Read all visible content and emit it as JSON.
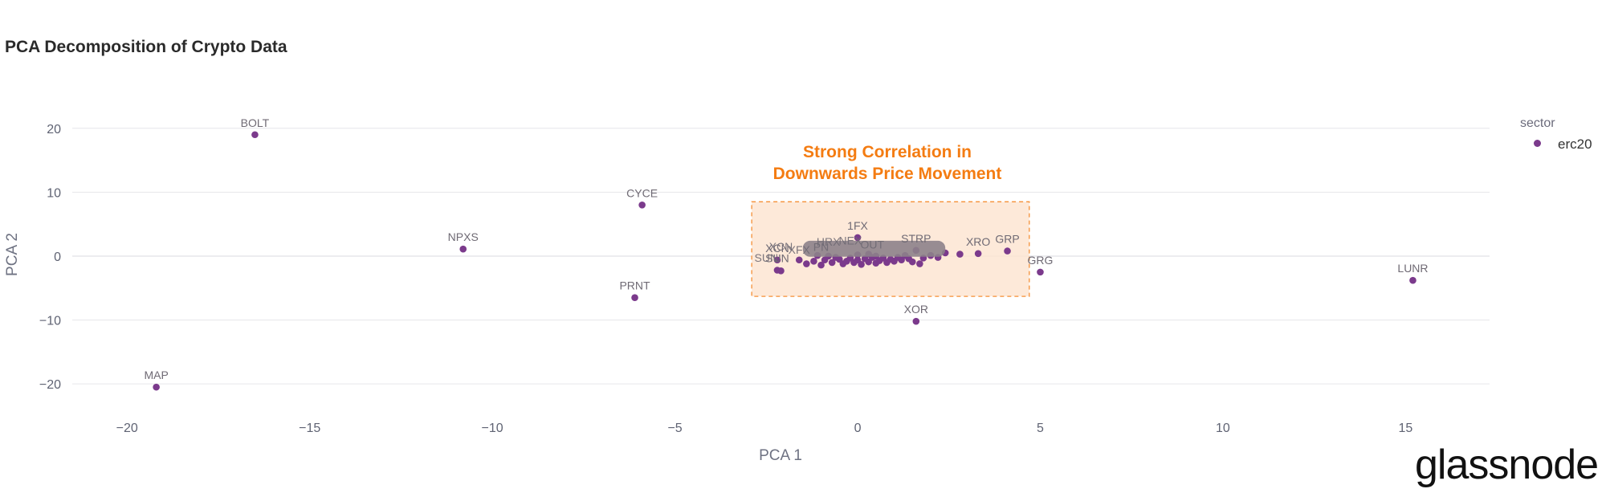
{
  "chart_data": {
    "type": "scatter",
    "title": "PCA Decomposition of Crypto Data",
    "xlabel": "PCA 1",
    "ylabel": "PCA 2",
    "xlim": [
      -21.5,
      17.3
    ],
    "ylim": [
      -24,
      25
    ],
    "xticks": [
      -20,
      -15,
      -10,
      -5,
      0,
      5,
      10,
      15
    ],
    "yticks": [
      20,
      10,
      0,
      -10,
      -20
    ],
    "grid": "horizontal",
    "legend": {
      "title": "sector",
      "position": "top-right",
      "entries": [
        "erc20"
      ]
    },
    "series": [
      {
        "name": "erc20",
        "color": "#7b3a8c",
        "labeled_points": [
          {
            "label": "BOLT",
            "x": -16.5,
            "y": 19
          },
          {
            "label": "CYCE",
            "x": -5.9,
            "y": 8
          },
          {
            "label": "NPXS",
            "x": -10.8,
            "y": 1.1
          },
          {
            "label": "PRNT",
            "x": -6.1,
            "y": -6.5
          },
          {
            "label": "MAP",
            "x": -19.2,
            "y": -20.5
          },
          {
            "label": "XOR",
            "x": 1.6,
            "y": -10.2
          },
          {
            "label": "GRG",
            "x": 5.0,
            "y": -2.5
          },
          {
            "label": "LUNR",
            "x": 15.2,
            "y": -3.8
          },
          {
            "label": "GRP",
            "x": 4.1,
            "y": 0.8
          },
          {
            "label": "XRO",
            "x": 3.3,
            "y": 0.4
          },
          {
            "label": "STRP",
            "x": 1.6,
            "y": 0.9
          },
          {
            "label": "1FX",
            "x": 0.0,
            "y": 2.9
          },
          {
            "label": "XCN",
            "x": -2.2,
            "y": -0.6
          },
          {
            "label": "SUN",
            "x": -2.2,
            "y": -2.2
          }
        ],
        "cluster_points": [
          [
            -2.1,
            -2.3
          ],
          [
            -1.4,
            -1.2
          ],
          [
            -1.2,
            -0.8
          ],
          [
            -1.0,
            -1.4
          ],
          [
            -0.9,
            -0.6
          ],
          [
            -0.7,
            -1.0
          ],
          [
            -0.5,
            -0.5
          ],
          [
            -0.4,
            -1.2
          ],
          [
            -0.3,
            -0.8
          ],
          [
            -0.2,
            -0.3
          ],
          [
            -0.1,
            -1.0
          ],
          [
            0.0,
            -0.6
          ],
          [
            0.1,
            -1.3
          ],
          [
            0.2,
            -0.4
          ],
          [
            0.3,
            -0.9
          ],
          [
            0.4,
            -0.2
          ],
          [
            0.5,
            -1.1
          ],
          [
            0.6,
            -0.7
          ],
          [
            0.7,
            -0.3
          ],
          [
            0.8,
            -1.0
          ],
          [
            0.9,
            -0.5
          ],
          [
            1.0,
            -0.8
          ],
          [
            1.1,
            -0.2
          ],
          [
            1.2,
            -0.6
          ],
          [
            1.4,
            -0.4
          ],
          [
            1.5,
            -0.9
          ],
          [
            1.7,
            -1.2
          ],
          [
            1.8,
            -0.3
          ],
          [
            2.0,
            0.1
          ],
          [
            2.2,
            -0.2
          ],
          [
            2.4,
            0.5
          ],
          [
            2.8,
            0.3
          ],
          [
            -1.6,
            -0.6
          ],
          [
            -0.6,
            -0.2
          ],
          [
            0.0,
            0.2
          ],
          [
            0.5,
            0.0
          ],
          [
            1.3,
            0.1
          ],
          [
            -0.8,
            0.0
          ],
          [
            0.3,
            0.3
          ],
          [
            -1.1,
            0.1
          ]
        ],
        "cluster_labels": [
          "XCN",
          "SUN",
          "XFX",
          "HRX",
          "PN",
          "NEX",
          "OUT"
        ]
      }
    ],
    "annotation": {
      "lines": [
        "Strong Correlation in",
        "Downwards Price Movement"
      ],
      "color": "#f47c12",
      "fill": "#fde6d3",
      "x_range": [
        -2.9,
        4.7
      ],
      "y_range": [
        -6.3,
        8.5
      ]
    }
  },
  "brand": "glassnode"
}
